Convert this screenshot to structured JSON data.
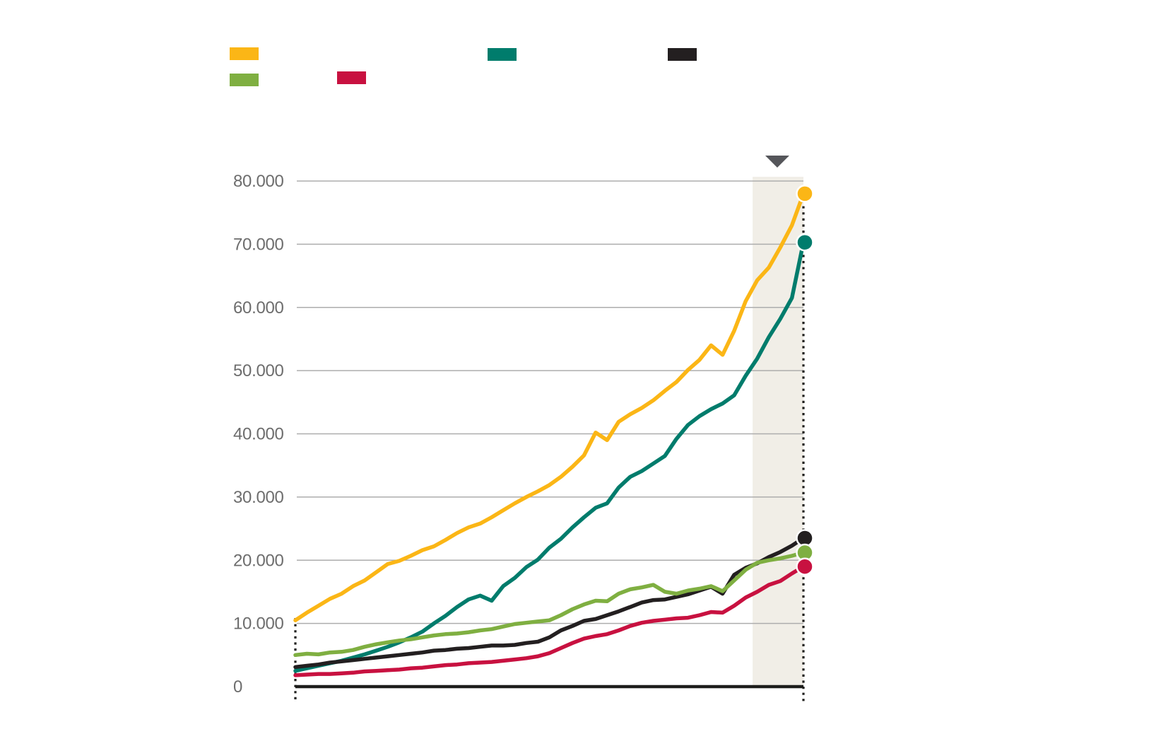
{
  "page": {
    "background": "#ffffff"
  },
  "legend": {
    "items": [
      {
        "key": "yellow",
        "color": "#FBB616"
      },
      {
        "key": "teal",
        "color": "#007C6C"
      },
      {
        "key": "black",
        "color": "#231F20"
      },
      {
        "key": "green",
        "color": "#7FAF41"
      },
      {
        "key": "red",
        "color": "#C81140"
      }
    ]
  },
  "chart_data": {
    "type": "line",
    "x_count": 45,
    "ylim": [
      0,
      80000
    ],
    "grid": true,
    "yticks": [
      {
        "value": 0,
        "label": "0"
      },
      {
        "value": 10000,
        "label": "10.000"
      },
      {
        "value": 20000,
        "label": "20.000"
      },
      {
        "value": 30000,
        "label": "30.000"
      },
      {
        "value": 40000,
        "label": "40.000"
      },
      {
        "value": 50000,
        "label": "50.000"
      },
      {
        "value": 60000,
        "label": "60.000"
      },
      {
        "value": 70000,
        "label": "70.000"
      },
      {
        "value": 80000,
        "label": "80.000"
      }
    ],
    "series": [
      {
        "name": "yellow",
        "color": "#FBB616",
        "values": [
          10500,
          11700,
          12800,
          13900,
          14700,
          15900,
          16800,
          18100,
          19400,
          19900,
          20700,
          21600,
          22200,
          23200,
          24300,
          25200,
          25800,
          26800,
          27900,
          29000,
          30000,
          30900,
          31900,
          33200,
          34800,
          36600,
          40200,
          39000,
          41900,
          43100,
          44100,
          45300,
          46800,
          48200,
          50100,
          51700,
          54000,
          52500,
          56300,
          61000,
          64300,
          66300,
          69500,
          73000,
          78000
        ]
      },
      {
        "name": "teal",
        "color": "#007C6C",
        "values": [
          2500,
          2900,
          3300,
          3700,
          4100,
          4600,
          5100,
          5700,
          6300,
          7000,
          7800,
          8700,
          10000,
          11200,
          12600,
          13800,
          14400,
          13600,
          15900,
          17200,
          18900,
          20100,
          22000,
          23400,
          25200,
          26800,
          28300,
          29000,
          31500,
          33200,
          34100,
          35300,
          36500,
          39200,
          41400,
          42800,
          43900,
          44800,
          46100,
          49200,
          51900,
          55300,
          58200,
          61500,
          70300
        ]
      },
      {
        "name": "black",
        "color": "#231F20",
        "values": [
          3100,
          3300,
          3500,
          3800,
          4000,
          4200,
          4400,
          4600,
          4800,
          5000,
          5200,
          5400,
          5700,
          5800,
          6000,
          6100,
          6300,
          6500,
          6500,
          6600,
          6900,
          7100,
          7800,
          8900,
          9600,
          10400,
          10700,
          11300,
          11900,
          12600,
          13300,
          13700,
          13800,
          14200,
          14600,
          15200,
          15800,
          14700,
          17700,
          18800,
          19500,
          20500,
          21300,
          22300,
          23500
        ]
      },
      {
        "name": "green",
        "color": "#7FAF41",
        "values": [
          5000,
          5200,
          5100,
          5400,
          5500,
          5800,
          6300,
          6700,
          7000,
          7300,
          7500,
          7800,
          8100,
          8300,
          8400,
          8600,
          8900,
          9100,
          9500,
          9900,
          10100,
          10300,
          10500,
          11300,
          12250,
          13000,
          13600,
          13500,
          14700,
          15400,
          15700,
          16100,
          15000,
          14700,
          15200,
          15500,
          15900,
          15100,
          16800,
          18500,
          19600,
          20000,
          20300,
          20700,
          21200
        ]
      },
      {
        "name": "red",
        "color": "#C81140",
        "values": [
          1800,
          1900,
          2000,
          2000,
          2100,
          2200,
          2400,
          2500,
          2600,
          2700,
          2900,
          3000,
          3200,
          3400,
          3500,
          3700,
          3800,
          3900,
          4100,
          4300,
          4500,
          4800,
          5300,
          6100,
          6900,
          7600,
          8000,
          8300,
          8900,
          9600,
          10100,
          10400,
          10600,
          10800,
          10900,
          11300,
          11800,
          11700,
          12800,
          14100,
          15000,
          16100,
          16700,
          17900,
          19000
        ]
      }
    ],
    "highlight_band_fraction": [
      0.9,
      1.0
    ],
    "highlight_band_color": "#F1EEE7",
    "marker_triangle_fraction": 0.9485,
    "marker_triangle_color": "#55565A",
    "gridline_color": "#ADADAD",
    "axis_label_color": "#6D6D6D",
    "baseline_color": "#1D1D1B",
    "dotted_guide_color": "#1D1D1B",
    "end_dots": true
  }
}
